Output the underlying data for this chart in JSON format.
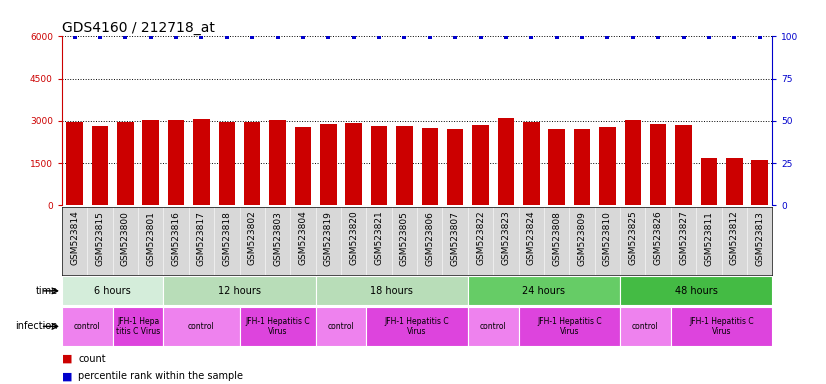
{
  "title": "GDS4160 / 212718_at",
  "samples": [
    "GSM523814",
    "GSM523815",
    "GSM523800",
    "GSM523801",
    "GSM523816",
    "GSM523817",
    "GSM523818",
    "GSM523802",
    "GSM523803",
    "GSM523804",
    "GSM523819",
    "GSM523820",
    "GSM523821",
    "GSM523805",
    "GSM523806",
    "GSM523807",
    "GSM523822",
    "GSM523823",
    "GSM523824",
    "GSM523808",
    "GSM523809",
    "GSM523810",
    "GSM523825",
    "GSM523826",
    "GSM523827",
    "GSM523811",
    "GSM523812",
    "GSM523813"
  ],
  "counts": [
    2950,
    2820,
    2980,
    3020,
    3050,
    3060,
    2960,
    2980,
    3020,
    2780,
    2880,
    2920,
    2820,
    2820,
    2760,
    2720,
    2840,
    3100,
    2960,
    2720,
    2720,
    2780,
    3050,
    2900,
    2860,
    1690,
    1690,
    1620
  ],
  "ylim_left": [
    0,
    6000
  ],
  "ylim_right": [
    0,
    100
  ],
  "yticks_left": [
    0,
    1500,
    3000,
    4500,
    6000
  ],
  "yticks_right": [
    0,
    25,
    50,
    75,
    100
  ],
  "time_groups": [
    {
      "label": "6 hours",
      "start": 0,
      "end": 4,
      "color": "#d4edda"
    },
    {
      "label": "12 hours",
      "start": 4,
      "end": 10,
      "color": "#b8ddb8"
    },
    {
      "label": "18 hours",
      "start": 10,
      "end": 16,
      "color": "#b8ddb8"
    },
    {
      "label": "24 hours",
      "start": 16,
      "end": 22,
      "color": "#66cc66"
    },
    {
      "label": "48 hours",
      "start": 22,
      "end": 28,
      "color": "#44bb44"
    }
  ],
  "infection_groups": [
    {
      "label": "control",
      "start": 0,
      "end": 2,
      "color": "#ee82ee"
    },
    {
      "label": "JFH-1 Hepa\ntitis C Virus",
      "start": 2,
      "end": 4,
      "color": "#dd44dd"
    },
    {
      "label": "control",
      "start": 4,
      "end": 7,
      "color": "#ee82ee"
    },
    {
      "label": "JFH-1 Hepatitis C\nVirus",
      "start": 7,
      "end": 10,
      "color": "#dd44dd"
    },
    {
      "label": "control",
      "start": 10,
      "end": 12,
      "color": "#ee82ee"
    },
    {
      "label": "JFH-1 Hepatitis C\nVirus",
      "start": 12,
      "end": 16,
      "color": "#dd44dd"
    },
    {
      "label": "control",
      "start": 16,
      "end": 18,
      "color": "#ee82ee"
    },
    {
      "label": "JFH-1 Hepatitis C\nVirus",
      "start": 18,
      "end": 22,
      "color": "#dd44dd"
    },
    {
      "label": "control",
      "start": 22,
      "end": 24,
      "color": "#ee82ee"
    },
    {
      "label": "JFH-1 Hepatitis C\nVirus",
      "start": 24,
      "end": 28,
      "color": "#dd44dd"
    }
  ],
  "bar_color": "#cc0000",
  "dot_color": "#0000cc",
  "axis_color_left": "#cc0000",
  "axis_color_right": "#0000cc",
  "title_fontsize": 10,
  "tick_fontsize": 6.5,
  "annot_fontsize": 7,
  "sample_bg_color": "#d8d8d8",
  "main_bg_color": "#ffffff"
}
